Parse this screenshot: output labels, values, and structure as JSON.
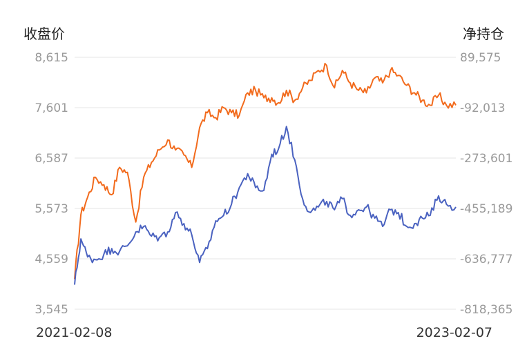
{
  "chart_data": {
    "type": "line",
    "left_axis_title": "收盘价",
    "right_axis_title": "净持仓",
    "left_ticks": [
      "8,615",
      "7,601",
      "6,587",
      "5,573",
      "4,559",
      "3,545"
    ],
    "right_ticks": [
      "89,575",
      "-92,013",
      "-273,601",
      "-455,189",
      "-636,777",
      "-818,365"
    ],
    "ylim_left": [
      3545,
      8615
    ],
    "ylim_right": [
      -818365,
      89575
    ],
    "x_labels": [
      "2021-02-08",
      "2023-02-07"
    ],
    "xlim": [
      "2021-02-08",
      "2023-02-07"
    ],
    "grid": true,
    "series": [
      {
        "axis": "left",
        "color": "#f26b1d",
        "x": [
          "2021-02-08",
          "2021-02-20",
          "2021-03-05",
          "2021-03-20",
          "2021-04-05",
          "2021-04-20",
          "2021-05-05",
          "2021-05-20",
          "2021-06-05",
          "2021-06-20",
          "2021-07-05",
          "2021-07-20",
          "2021-08-05",
          "2021-08-20",
          "2021-09-05",
          "2021-09-20",
          "2021-10-05",
          "2021-10-20",
          "2021-11-05",
          "2021-11-20",
          "2021-12-05",
          "2021-12-20",
          "2022-01-05",
          "2022-01-20",
          "2022-02-05",
          "2022-02-20",
          "2022-03-05",
          "2022-03-20",
          "2022-04-05",
          "2022-04-20",
          "2022-05-05",
          "2022-05-20",
          "2022-06-05",
          "2022-06-20",
          "2022-07-05",
          "2022-07-20",
          "2022-08-05",
          "2022-08-20",
          "2022-09-05",
          "2022-09-20",
          "2022-10-05",
          "2022-10-20",
          "2022-11-05",
          "2022-11-20",
          "2022-12-05",
          "2022-12-20",
          "2023-01-05",
          "2023-01-20",
          "2023-02-07"
        ],
        "values": [
          4150,
          5450,
          5800,
          6200,
          6050,
          5850,
          6400,
          6300,
          5300,
          6200,
          6500,
          6750,
          6950,
          6750,
          6650,
          6400,
          7200,
          7500,
          7400,
          7600,
          7500,
          7450,
          7900,
          7950,
          7800,
          7800,
          7700,
          7950,
          7750,
          8000,
          8150,
          8350,
          8450,
          8000,
          8350,
          8100,
          7950,
          7900,
          8200,
          8100,
          8350,
          8250,
          8050,
          7900,
          7750,
          7650,
          7850,
          7650,
          7650
        ]
      },
      {
        "axis": "right",
        "color": "#4a62c0",
        "x": [
          "2021-02-08",
          "2021-02-20",
          "2021-03-05",
          "2021-03-20",
          "2021-04-05",
          "2021-04-20",
          "2021-05-05",
          "2021-05-20",
          "2021-06-05",
          "2021-06-20",
          "2021-07-05",
          "2021-07-20",
          "2021-08-05",
          "2021-08-20",
          "2021-09-05",
          "2021-09-20",
          "2021-10-05",
          "2021-10-20",
          "2021-11-05",
          "2021-11-20",
          "2021-12-05",
          "2021-12-20",
          "2022-01-05",
          "2022-01-20",
          "2022-02-05",
          "2022-02-20",
          "2022-03-05",
          "2022-03-20",
          "2022-04-05",
          "2022-04-20",
          "2022-05-05",
          "2022-05-20",
          "2022-06-05",
          "2022-06-20",
          "2022-07-05",
          "2022-07-20",
          "2022-08-05",
          "2022-08-20",
          "2022-09-05",
          "2022-09-20",
          "2022-10-05",
          "2022-10-20",
          "2022-11-05",
          "2022-11-20",
          "2022-12-05",
          "2022-12-20",
          "2023-01-05",
          "2023-01-20",
          "2023-02-07"
        ],
        "values": [
          -730000,
          -565000,
          -630000,
          -640000,
          -620000,
          -600000,
          -610000,
          -590000,
          -540000,
          -520000,
          -555000,
          -560000,
          -540000,
          -470000,
          -510000,
          -550000,
          -650000,
          -600000,
          -500000,
          -480000,
          -440000,
          -380000,
          -330000,
          -380000,
          -390000,
          -260000,
          -240000,
          -160000,
          -280000,
          -420000,
          -470000,
          -450000,
          -430000,
          -460000,
          -420000,
          -480000,
          -460000,
          -450000,
          -490000,
          -520000,
          -460000,
          -470000,
          -520000,
          -510000,
          -490000,
          -480000,
          -410000,
          -440000,
          -450000
        ]
      }
    ]
  }
}
